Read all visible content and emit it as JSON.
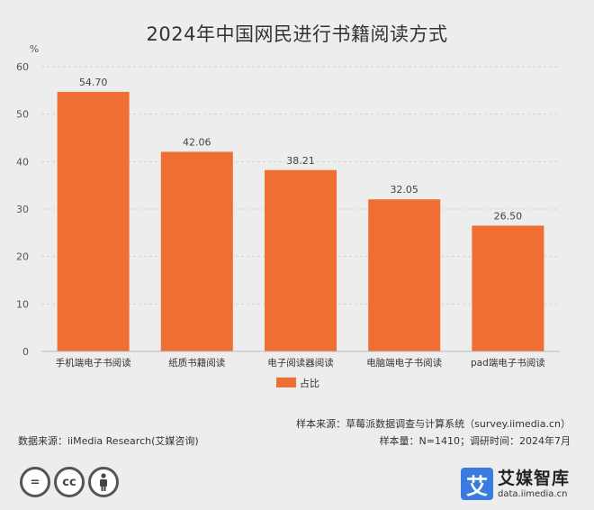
{
  "title": "2024年中国网民进行书籍阅读方式",
  "chart_data": {
    "type": "bar",
    "categories": [
      "手机端电子书阅读",
      "纸质书籍阅读",
      "电子阅读器阅读",
      "电脑端电子书阅读",
      "pad端电子书阅读"
    ],
    "series": [
      {
        "name": "占比",
        "values": [
          54.7,
          42.06,
          38.21,
          32.05,
          26.5
        ],
        "color": "#ee6e33"
      }
    ],
    "data_labels": [
      "54.70",
      "42.06",
      "38.21",
      "32.05",
      "26.50"
    ],
    "ylabel": "%",
    "ylim": [
      0,
      60
    ],
    "yticks": [
      0,
      10,
      20,
      30,
      40,
      50,
      60
    ],
    "grid": true,
    "legend_position": "bottom-center"
  },
  "notes": {
    "source": "数据来源：iiMedia Research(艾媒咨询)",
    "sample_source": "样本来源：草莓派数据调查与计算系统（survey.iimedia.cn）",
    "sample_size": "样本量：N=1410；调研时间：2024年7月"
  },
  "brand": {
    "logo_char": "艾",
    "name": "艾媒智库",
    "url": "data.iimedia.cn"
  },
  "license_icons": [
    "cc-equal-icon",
    "cc-icon",
    "cc-attribution-icon"
  ]
}
